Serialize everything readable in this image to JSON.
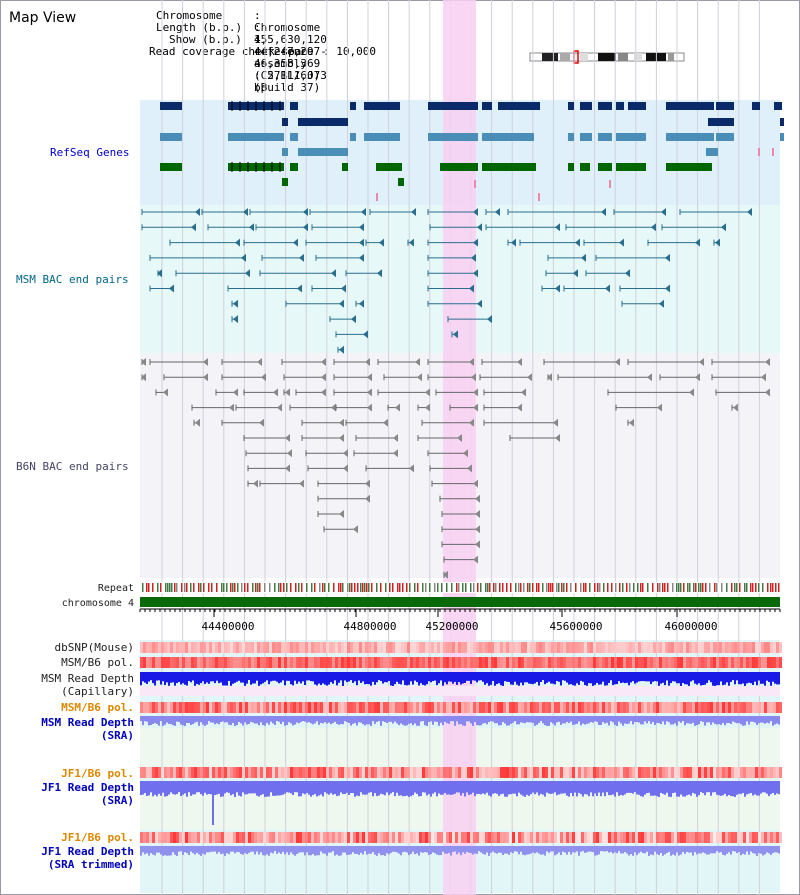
{
  "title": "Map View",
  "header": {
    "chromosome_key": "Chromosome",
    "chromosome_val": "Chromosome 4, reference assembly (C57BL/6J) (Build 37)",
    "length_key": "Length (b.p.)",
    "length_val": "155,630,120",
    "show_key": "Show (b.p.)",
    "show_val": "44,247,297-46,358,369 : 2,111,073 bp",
    "coverage_key": "Read coverage check span",
    "coverage_val": "10,000"
  },
  "tracks": {
    "refseq": "RefSeq Genes",
    "msm_bac": "MSM BAC end pairs",
    "b6n_bac": "B6N BAC end pairs",
    "repeat": "Repeat",
    "chromosome": "chromosome 4",
    "dbsnp": "dbSNP(Mouse)",
    "msm_b6_pol": "MSM/B6 pol.",
    "msm_depth_cap_1": "MSM Read Depth",
    "msm_depth_cap_2": "(Capillary)",
    "msm_b6_pol_2": "MSM/B6 pol.",
    "msm_depth_sra_1": "MSM Read Depth",
    "msm_depth_sra_2": "(SRA)",
    "jf1_b6_pol": "JF1/B6 pol.",
    "jf1_depth_sra_1": "JF1 Read Depth",
    "jf1_depth_sra_2": "(SRA)",
    "jf1_b6_pol_2": "JF1/B6 pol.",
    "jf1_depth_trim_1": "JF1 Read Depth",
    "jf1_depth_trim_2": "(SRA trimmed)"
  },
  "ruler": [
    "44400000",
    "44800000",
    "45200000",
    "45600000",
    "46000000"
  ],
  "colors": {
    "refseq_bg": "#dff0fa",
    "msm_bg": "#e6f8f8",
    "b6n_bg": "#f4f4f8",
    "highlight": "#f8d8f4",
    "gene_navy": "#0a2a6a",
    "gene_steel": "#4a8eb8",
    "gene_green": "#006600",
    "bac_teal": "#2a6e8e",
    "bac_gray": "#666666",
    "depth_blue": "#1a1ae6",
    "depth_violet": "#8888ee"
  }
}
